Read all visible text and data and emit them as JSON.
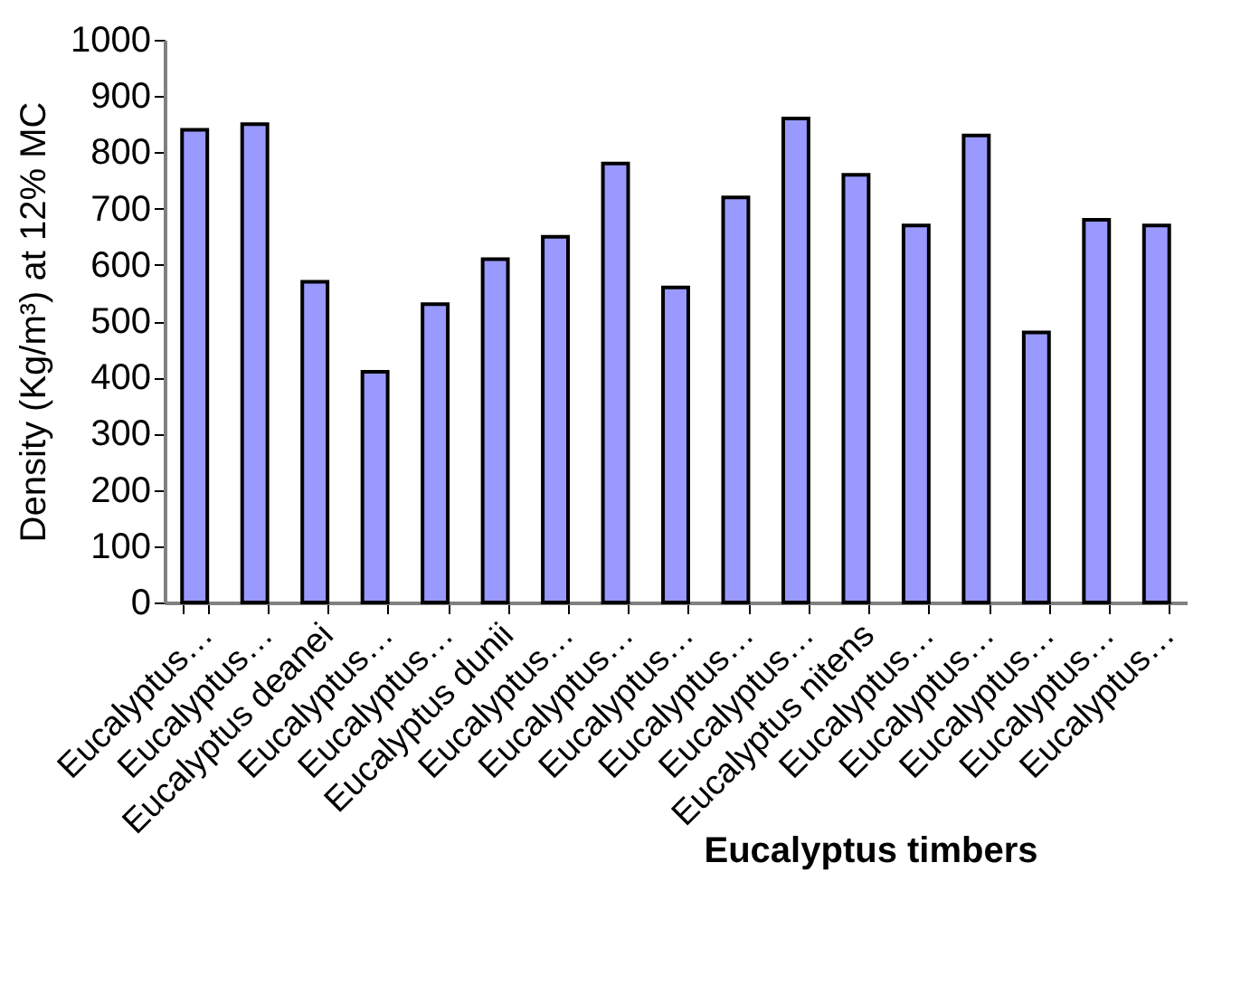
{
  "chart_data": {
    "type": "bar",
    "xlabel": "Eucalyptus timbers",
    "ylabel": "Density (Kg/m³) at 12% MC",
    "categories": [
      "Eucalyptus…",
      "Eucalyptus…",
      "Eucalyptus deanei",
      "Eucalyptus…",
      "Eucalyptus…",
      "Eucalyptus dunii",
      "Eucalyptus…",
      "Eucalyptus…",
      "Eucalyptus…",
      "Eucalyptus…",
      "Eucalyptus…",
      "Eucalyptus nitens",
      "Eucalyptus…",
      "Eucalyptus…",
      "Eucalyptus…",
      "Eucalyptus…",
      "Eucalyptus…"
    ],
    "values": [
      840,
      850,
      570,
      410,
      530,
      610,
      650,
      780,
      560,
      720,
      860,
      760,
      670,
      830,
      480,
      680,
      670
    ],
    "color": "#9999ff",
    "ylim": [
      0,
      1000
    ],
    "yticks": [
      0,
      100,
      200,
      300,
      400,
      500,
      600,
      700,
      800,
      900,
      1000
    ],
    "grid": false
  }
}
